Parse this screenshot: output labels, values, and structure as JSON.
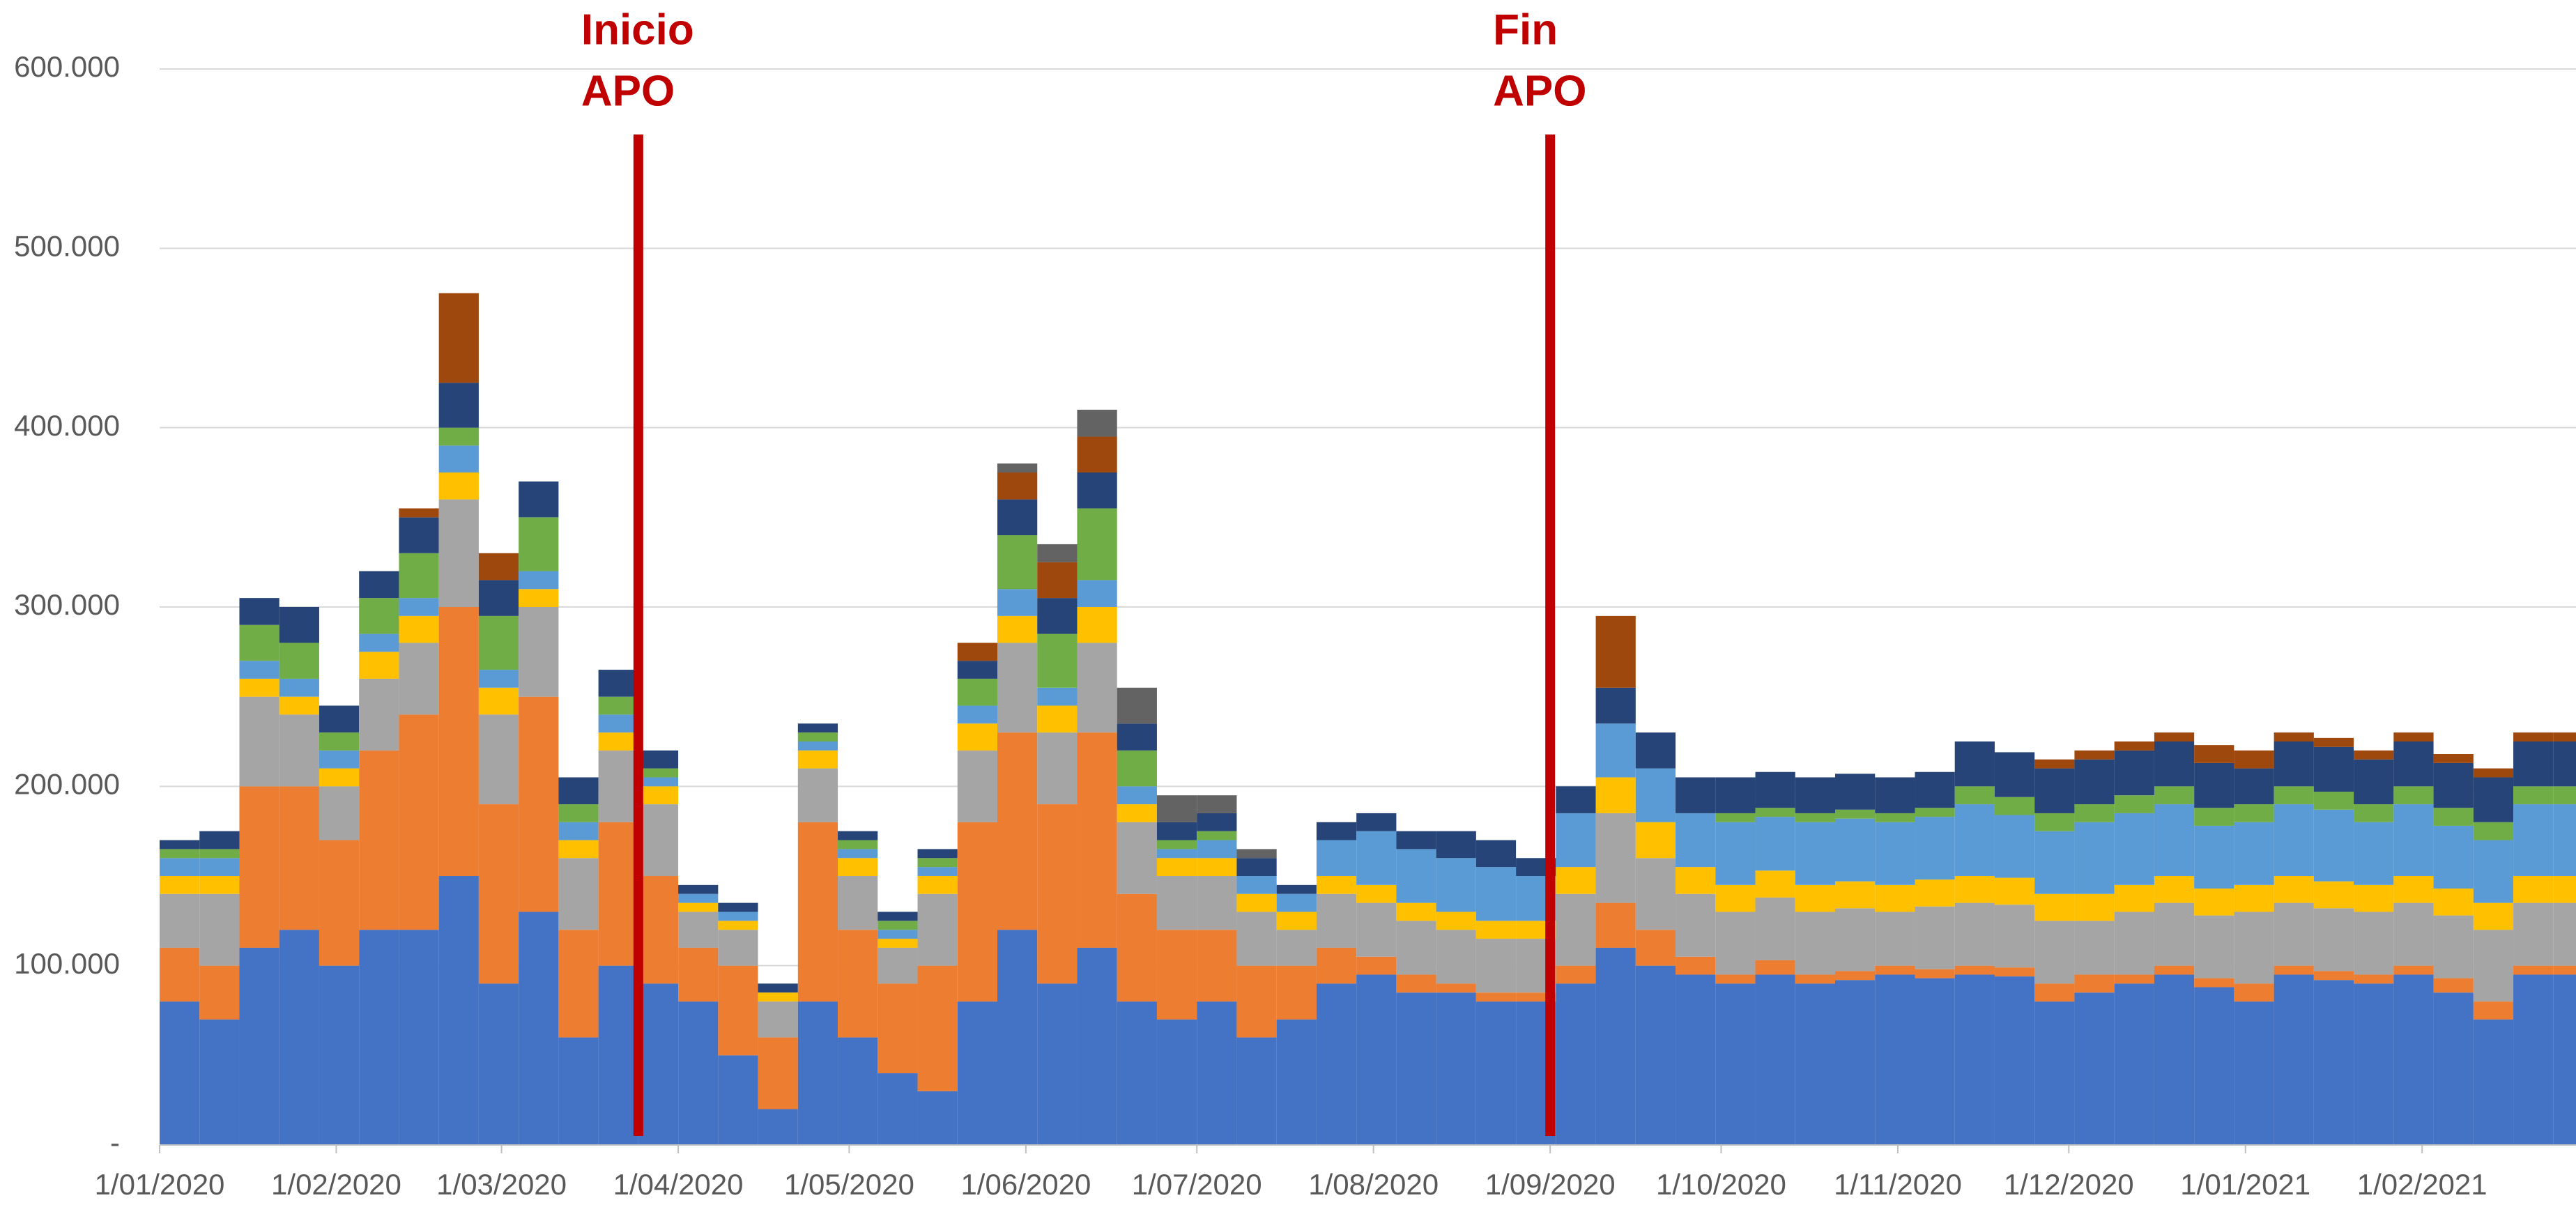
{
  "chart_data": {
    "type": "stacked_bar",
    "x": [
      "1/01/2020",
      "8/01/2020",
      "15/01/2020",
      "22/01/2020",
      "29/01/2020",
      "5/02/2020",
      "12/02/2020",
      "19/02/2020",
      "26/02/2020",
      "4/03/2020",
      "11/03/2020",
      "18/03/2020",
      "25/03/2020",
      "1/04/2020",
      "8/04/2020",
      "15/04/2020",
      "22/04/2020",
      "29/04/2020",
      "6/05/2020",
      "13/05/2020",
      "20/05/2020",
      "27/05/2020",
      "3/06/2020",
      "10/06/2020",
      "17/06/2020",
      "24/06/2020",
      "1/07/2020",
      "8/07/2020",
      "15/07/2020",
      "22/07/2020",
      "29/07/2020",
      "5/08/2020",
      "12/08/2020",
      "19/08/2020",
      "26/08/2020",
      "2/09/2020",
      "9/09/2020",
      "16/09/2020",
      "23/09/2020",
      "30/09/2020",
      "7/10/2020",
      "14/10/2020",
      "21/10/2020",
      "28/10/2020",
      "4/11/2020",
      "11/11/2020",
      "18/11/2020",
      "25/11/2020",
      "2/12/2020",
      "9/12/2020",
      "16/12/2020",
      "23/12/2020",
      "30/12/2020",
      "6/01/2021",
      "13/01/2021",
      "20/01/2021",
      "27/01/2021",
      "3/02/2021",
      "10/02/2021",
      "17/02/2021",
      "24/02/2021"
    ],
    "series": [
      {
        "color": "#4472c4",
        "values": [
          80000,
          70000,
          110000,
          120000,
          100000,
          120000,
          120000,
          150000,
          90000,
          130000,
          60000,
          100000,
          90000,
          80000,
          50000,
          20000,
          80000,
          60000,
          40000,
          30000,
          80000,
          120000,
          90000,
          110000,
          80000,
          70000,
          80000,
          60000,
          70000,
          90000,
          95000,
          85000,
          85000,
          80000,
          80000,
          90000,
          110000,
          100000,
          95000,
          90000,
          95000,
          90000,
          92000,
          95000,
          93000,
          95000,
          94000,
          80000,
          85000,
          90000,
          95000,
          88000,
          80000,
          95000,
          92000,
          90000,
          95000,
          85000,
          70000,
          95000,
          95000
        ]
      },
      {
        "color": "#ed7d31",
        "values": [
          30000,
          30000,
          90000,
          80000,
          70000,
          100000,
          120000,
          150000,
          100000,
          120000,
          60000,
          80000,
          60000,
          30000,
          50000,
          40000,
          100000,
          60000,
          50000,
          70000,
          100000,
          110000,
          100000,
          120000,
          60000,
          50000,
          40000,
          40000,
          30000,
          20000,
          10000,
          10000,
          5000,
          5000,
          5000,
          10000,
          25000,
          20000,
          10000,
          5000,
          8000,
          5000,
          5000,
          5000,
          5000,
          5000,
          5000,
          10000,
          10000,
          5000,
          5000,
          5000,
          10000,
          5000,
          5000,
          5000,
          5000,
          8000,
          10000,
          5000,
          5000
        ]
      },
      {
        "color": "#a5a5a5",
        "values": [
          30000,
          40000,
          50000,
          40000,
          30000,
          40000,
          40000,
          60000,
          50000,
          50000,
          40000,
          40000,
          40000,
          20000,
          20000,
          20000,
          30000,
          30000,
          20000,
          40000,
          40000,
          50000,
          40000,
          50000,
          40000,
          30000,
          30000,
          30000,
          20000,
          30000,
          30000,
          30000,
          30000,
          30000,
          30000,
          40000,
          50000,
          40000,
          35000,
          35000,
          35000,
          35000,
          35000,
          30000,
          35000,
          35000,
          35000,
          35000,
          30000,
          35000,
          35000,
          35000,
          40000,
          35000,
          35000,
          35000,
          35000,
          35000,
          40000,
          35000,
          35000
        ]
      },
      {
        "color": "#ffc000",
        "values": [
          10000,
          10000,
          10000,
          10000,
          10000,
          15000,
          15000,
          15000,
          15000,
          10000,
          10000,
          10000,
          10000,
          5000,
          5000,
          5000,
          10000,
          10000,
          5000,
          10000,
          15000,
          15000,
          15000,
          20000,
          10000,
          10000,
          10000,
          10000,
          10000,
          10000,
          10000,
          10000,
          10000,
          10000,
          10000,
          15000,
          20000,
          20000,
          15000,
          15000,
          15000,
          15000,
          15000,
          15000,
          15000,
          15000,
          15000,
          15000,
          15000,
          15000,
          15000,
          15000,
          15000,
          15000,
          15000,
          15000,
          15000,
          15000,
          15000,
          15000,
          15000
        ]
      },
      {
        "color": "#5b9bd5",
        "values": [
          10000,
          10000,
          10000,
          10000,
          10000,
          10000,
          10000,
          15000,
          10000,
          10000,
          10000,
          10000,
          5000,
          5000,
          5000,
          0,
          5000,
          5000,
          5000,
          5000,
          10000,
          15000,
          10000,
          15000,
          10000,
          5000,
          10000,
          10000,
          10000,
          20000,
          30000,
          30000,
          30000,
          30000,
          25000,
          30000,
          30000,
          30000,
          30000,
          35000,
          30000,
          35000,
          35000,
          35000,
          35000,
          40000,
          35000,
          35000,
          40000,
          40000,
          40000,
          35000,
          35000,
          40000,
          40000,
          35000,
          40000,
          35000,
          35000,
          40000,
          40000
        ]
      },
      {
        "color": "#70ad47",
        "values": [
          5000,
          5000,
          20000,
          20000,
          10000,
          20000,
          25000,
          10000,
          30000,
          30000,
          10000,
          10000,
          5000,
          0,
          0,
          0,
          5000,
          5000,
          5000,
          5000,
          15000,
          30000,
          30000,
          40000,
          20000,
          5000,
          5000,
          0,
          0,
          0,
          0,
          0,
          0,
          0,
          0,
          0,
          0,
          0,
          0,
          5000,
          5000,
          5000,
          5000,
          5000,
          5000,
          10000,
          10000,
          10000,
          10000,
          10000,
          10000,
          10000,
          10000,
          10000,
          10000,
          10000,
          10000,
          10000,
          10000,
          10000,
          10000
        ]
      },
      {
        "color": "#264478",
        "values": [
          5000,
          10000,
          15000,
          20000,
          15000,
          15000,
          20000,
          25000,
          20000,
          20000,
          15000,
          15000,
          10000,
          5000,
          5000,
          5000,
          5000,
          5000,
          5000,
          5000,
          10000,
          20000,
          20000,
          20000,
          15000,
          10000,
          10000,
          10000,
          5000,
          10000,
          10000,
          10000,
          15000,
          15000,
          10000,
          15000,
          20000,
          20000,
          20000,
          20000,
          20000,
          20000,
          20000,
          20000,
          20000,
          25000,
          25000,
          25000,
          25000,
          25000,
          25000,
          25000,
          20000,
          25000,
          25000,
          25000,
          25000,
          25000,
          25000,
          25000,
          25000
        ]
      },
      {
        "color": "#9e480e",
        "values": [
          0,
          0,
          0,
          0,
          0,
          0,
          5000,
          50000,
          15000,
          0,
          0,
          0,
          0,
          0,
          0,
          0,
          0,
          0,
          0,
          0,
          10000,
          15000,
          20000,
          20000,
          0,
          0,
          0,
          0,
          0,
          0,
          0,
          0,
          0,
          0,
          0,
          0,
          40000,
          0,
          0,
          0,
          0,
          0,
          0,
          0,
          0,
          0,
          0,
          5000,
          5000,
          5000,
          5000,
          10000,
          10000,
          5000,
          5000,
          5000,
          5000,
          5000,
          5000,
          5000,
          5000
        ]
      },
      {
        "color": "#636363",
        "values": [
          0,
          0,
          0,
          0,
          0,
          0,
          0,
          0,
          0,
          0,
          0,
          0,
          0,
          0,
          0,
          0,
          0,
          0,
          0,
          0,
          0,
          5000,
          10000,
          15000,
          20000,
          15000,
          10000,
          5000,
          0,
          0,
          0,
          0,
          0,
          0,
          0,
          0,
          0,
          0,
          0,
          0,
          0,
          0,
          0,
          0,
          0,
          0,
          0,
          0,
          0,
          0,
          0,
          0,
          0,
          0,
          0,
          0,
          0,
          0,
          0,
          0,
          0
        ]
      }
    ],
    "xlim": [
      "1/01/2020",
      "28/02/2021"
    ],
    "xticks": [
      "1/01/2020",
      "1/02/2020",
      "1/03/2020",
      "1/04/2020",
      "1/05/2020",
      "1/06/2020",
      "1/07/2020",
      "1/08/2020",
      "1/09/2020",
      "1/10/2020",
      "1/11/2020",
      "1/12/2020",
      "1/01/2021",
      "1/02/2021"
    ],
    "ylim": [
      0,
      600000
    ],
    "yticks": [
      {
        "value": 0,
        "label": "-"
      },
      {
        "value": 100000,
        "label": "100.000"
      },
      {
        "value": 200000,
        "label": "200.000"
      },
      {
        "value": 300000,
        "label": "300.000"
      },
      {
        "value": 400000,
        "label": "400.000"
      },
      {
        "value": 500000,
        "label": "500.000"
      },
      {
        "value": 600000,
        "label": "600.000"
      }
    ],
    "grid": true,
    "annotations": [
      {
        "lines": [
          "Inicio",
          "APO"
        ],
        "x": "25/03/2020",
        "color": "#c00000"
      },
      {
        "lines": [
          "Fin",
          "APO"
        ],
        "x": "1/09/2020",
        "color": "#c00000"
      }
    ]
  }
}
